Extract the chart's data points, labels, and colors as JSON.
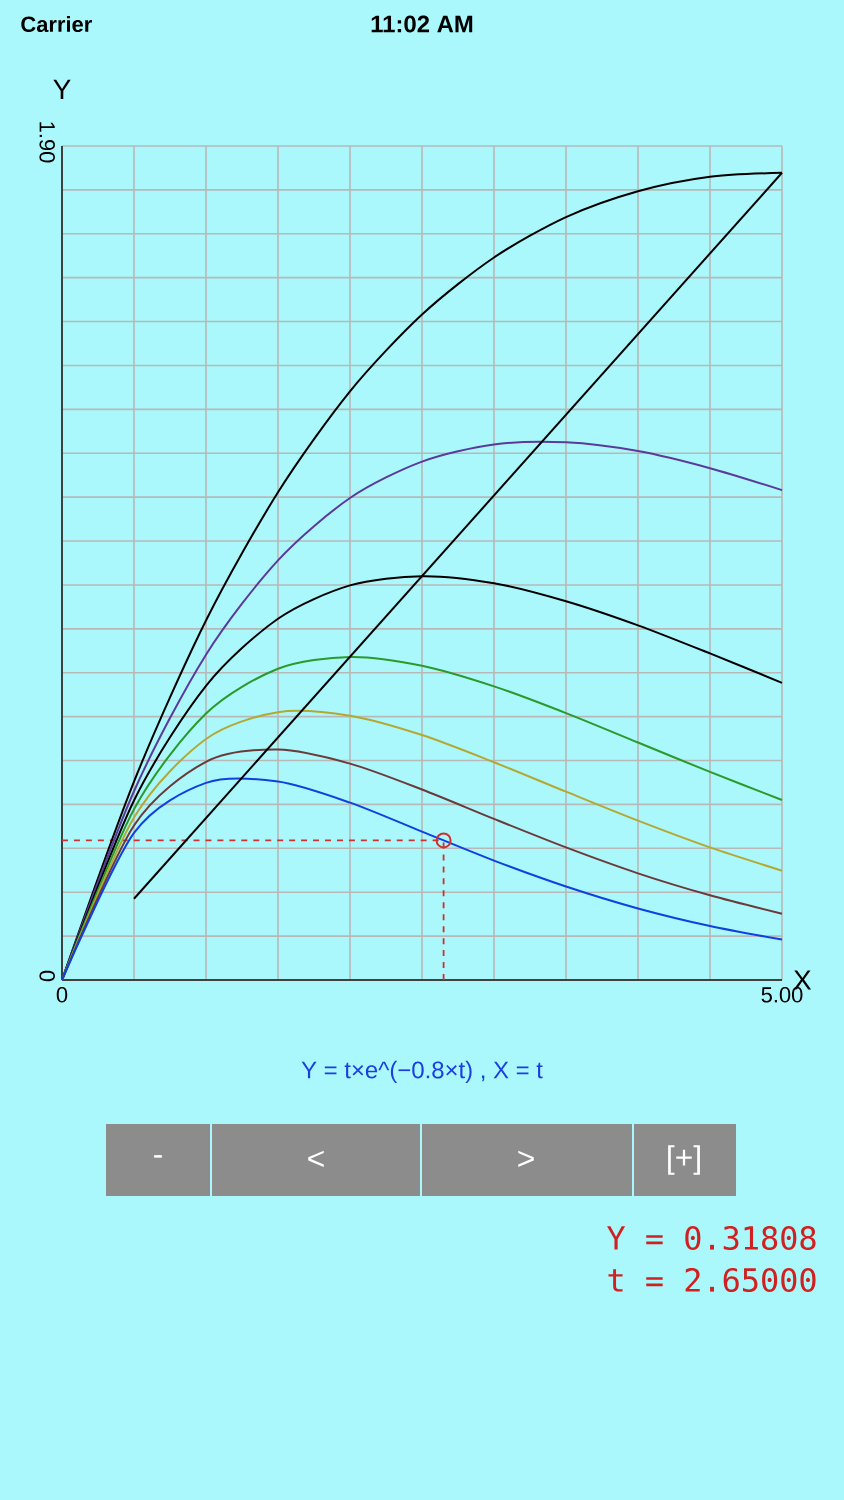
{
  "chart_data": {
    "type": "line",
    "xlabel": "X",
    "ylabel": "Y",
    "x": [
      0,
      0.5,
      1,
      1.5,
      2,
      2.5,
      3,
      3.5,
      4,
      4.5,
      5
    ],
    "series": [
      {
        "color": "#000000",
        "values": [
          0,
          0.452,
          0.819,
          1.111,
          1.341,
          1.516,
          1.646,
          1.738,
          1.797,
          1.83,
          1.839
        ]
      },
      {
        "color": "#5b3a9a",
        "values": [
          0,
          0.43,
          0.741,
          0.956,
          1.098,
          1.181,
          1.22,
          1.225,
          1.205,
          1.166,
          1.116
        ]
      },
      {
        "color": "#000000",
        "values": [
          0,
          0.409,
          0.67,
          0.823,
          0.899,
          0.92,
          0.904,
          0.863,
          0.808,
          0.744,
          0.677
        ]
      },
      {
        "color": "#2a9a2a",
        "values": [
          0,
          0.389,
          0.607,
          0.709,
          0.736,
          0.716,
          0.669,
          0.608,
          0.541,
          0.474,
          0.41
        ]
      },
      {
        "color": "#b5a832",
        "values": [
          0,
          0.37,
          0.549,
          0.61,
          0.602,
          0.558,
          0.496,
          0.429,
          0.363,
          0.302,
          0.249
        ]
      },
      {
        "color": "#6b3a3a",
        "values": [
          0,
          0.352,
          0.497,
          0.525,
          0.493,
          0.434,
          0.367,
          0.302,
          0.243,
          0.193,
          0.151
        ]
      },
      {
        "color": "#1040e0",
        "values": [
          0,
          0.335,
          0.449,
          0.452,
          0.404,
          0.338,
          0.272,
          0.213,
          0.163,
          0.123,
          0.092
        ]
      },
      {
        "color": "#000000",
        "x": [
          0.5,
          5
        ],
        "values": [
          0.185,
          1.839
        ]
      },
      {
        "type": "scatter",
        "marker": "circle",
        "color": "#d03030",
        "x": [
          2.65
        ],
        "values": [
          0.318
        ]
      }
    ],
    "xlim": [
      0,
      5
    ],
    "ylim": [
      0,
      1.9
    ],
    "xticks": [
      {
        "value": 0,
        "label": "0"
      },
      {
        "value": 0.5,
        "label": null
      },
      {
        "value": 1,
        "label": null
      },
      {
        "value": 1.5,
        "label": null
      },
      {
        "value": 2,
        "label": null
      },
      {
        "value": 2.5,
        "label": null
      },
      {
        "value": 3,
        "label": null
      },
      {
        "value": 3.5,
        "label": null
      },
      {
        "value": 4,
        "label": null
      },
      {
        "value": 4.5,
        "label": null
      },
      {
        "value": 5,
        "label": "5.00"
      }
    ],
    "yticks": [
      {
        "value": 0,
        "label": "0"
      },
      {
        "value": 0.1,
        "label": null
      },
      {
        "value": 0.2,
        "label": null
      },
      {
        "value": 0.3,
        "label": null
      },
      {
        "value": 0.4,
        "label": null
      },
      {
        "value": 0.5,
        "label": null
      },
      {
        "value": 0.6,
        "label": null
      },
      {
        "value": 0.7,
        "label": null
      },
      {
        "value": 0.8,
        "label": null
      },
      {
        "value": 0.9,
        "label": null
      },
      {
        "value": 1.0,
        "label": null
      },
      {
        "value": 1.1,
        "label": null
      },
      {
        "value": 1.2,
        "label": null
      },
      {
        "value": 1.3,
        "label": null
      },
      {
        "value": 1.4,
        "label": null
      },
      {
        "value": 1.5,
        "label": null
      },
      {
        "value": 1.6,
        "label": null
      },
      {
        "value": 1.7,
        "label": null
      },
      {
        "value": 1.8,
        "label": null
      },
      {
        "value": 1.9,
        "label": "1.90"
      }
    ],
    "grid": true,
    "ref_lines": [
      {
        "axis": "x",
        "value": 2.65,
        "color": "#d03030",
        "line_style": "dashed"
      },
      {
        "axis": "y",
        "value": 0.318,
        "color": "#d03030",
        "line_style": "dashed"
      }
    ],
    "annotations": [
      "Carrier",
      "11:02 AM",
      "Y = t×e^(−0.8×t) , X = t",
      "-",
      "<",
      ">",
      "[+]",
      "Y = 0.31808",
      "t = 2.65000"
    ]
  }
}
